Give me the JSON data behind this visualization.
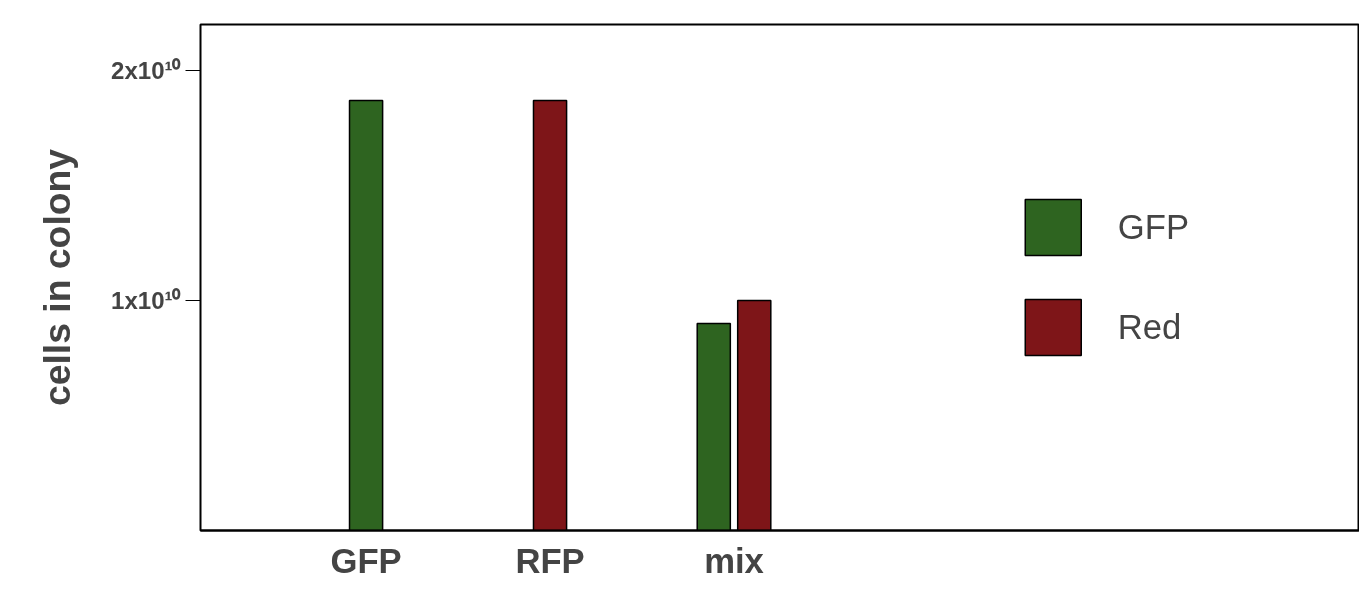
{
  "chart_data": {
    "type": "bar",
    "ylabel": "cells in colony",
    "categories": [
      "GFP",
      "RFP",
      "mix"
    ],
    "series": [
      {
        "name": "GFP",
        "color": "#2e6420",
        "values": [
          18700000000.0,
          null,
          9000000000.0
        ]
      },
      {
        "name": "Red",
        "color": "#7e1518",
        "values": [
          null,
          18700000000.0,
          10000000000.0
        ]
      }
    ],
    "ylim": [
      0,
      22000000000.0
    ],
    "yticks": [
      {
        "value": 10000000000.0,
        "label": "1x10¹⁰"
      },
      {
        "value": 20000000000.0,
        "label": "2x10¹⁰"
      }
    ],
    "grid": false,
    "legend": "right"
  }
}
